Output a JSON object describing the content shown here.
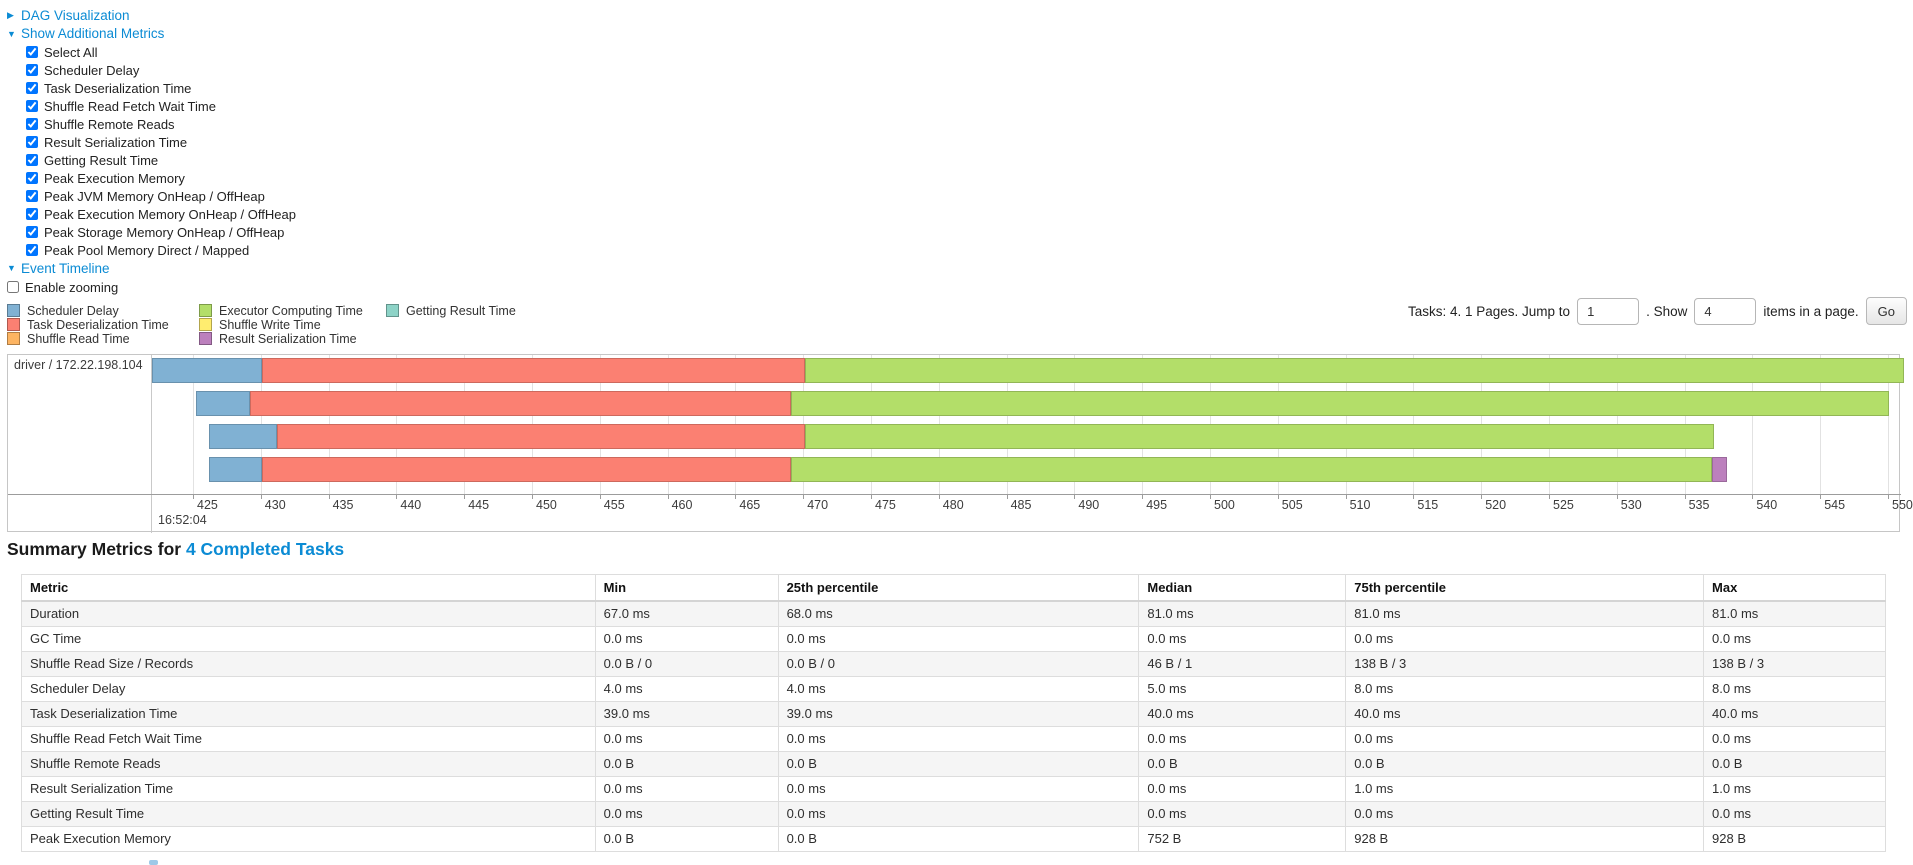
{
  "toggles": {
    "dag": "DAG Visualization",
    "additional_metrics": "Show Additional Metrics",
    "event_timeline": "Event Timeline"
  },
  "enable_zooming_label": "Enable zooming",
  "metrics_checkboxes": [
    "Select All",
    "Scheduler Delay",
    "Task Deserialization Time",
    "Shuffle Read Fetch Wait Time",
    "Shuffle Remote Reads",
    "Result Serialization Time",
    "Getting Result Time",
    "Peak Execution Memory",
    "Peak JVM Memory OnHeap / OffHeap",
    "Peak Execution Memory OnHeap / OffHeap",
    "Peak Storage Memory OnHeap / OffHeap",
    "Peak Pool Memory Direct / Mapped"
  ],
  "pagination": {
    "prefix": "Tasks: 4. 1 Pages. Jump to",
    "jump_value": "1",
    "mid": ". Show",
    "show_value": "4",
    "suffix": "items in a page.",
    "go_label": "Go"
  },
  "colors": {
    "link_blue": "#0b8bd4",
    "scheduler_delay": "#80B1D3",
    "task_deserialization": "#FB8072",
    "shuffle_read": "#FDB462",
    "executor_computing": "#B3DE69",
    "shuffle_write": "#FFED6F",
    "result_serialization": "#BC80BD",
    "getting_result": "#8DD3C7"
  },
  "timeline_legend": {
    "columns": [
      [
        {
          "label": "Scheduler Delay",
          "metric": "scheduler_delay"
        },
        {
          "label": "Task Deserialization Time",
          "metric": "task_deserialization"
        },
        {
          "label": "Shuffle Read Time",
          "metric": "shuffle_read"
        }
      ],
      [
        {
          "label": "Executor Computing Time",
          "metric": "executor_computing"
        },
        {
          "label": "Shuffle Write Time",
          "metric": "shuffle_write"
        },
        {
          "label": "Result Serialization Time",
          "metric": "result_serialization"
        }
      ],
      [
        {
          "label": "Getting Result Time",
          "metric": "getting_result"
        }
      ]
    ]
  },
  "chart_data": {
    "type": "timeline",
    "row_label": "driver / 172.22.198.104",
    "time_anchor_label": "16:52:04",
    "x_unit": "milliseconds within 16:52:04",
    "axis": {
      "min": 422.0,
      "max": 551.0,
      "tick_start": 425,
      "tick_step": 5,
      "tick_end": 550
    },
    "tasks": [
      {
        "segments": [
          {
            "metric": "scheduler_delay",
            "start": 422.0,
            "end": 430.1
          },
          {
            "metric": "task_deserialization",
            "start": 430.1,
            "end": 470.1
          },
          {
            "metric": "executor_computing",
            "start": 470.1,
            "end": 551.2
          }
        ]
      },
      {
        "segments": [
          {
            "metric": "scheduler_delay",
            "start": 425.2,
            "end": 429.2
          },
          {
            "metric": "task_deserialization",
            "start": 429.2,
            "end": 469.1
          },
          {
            "metric": "executor_computing",
            "start": 469.1,
            "end": 550.1
          }
        ]
      },
      {
        "segments": [
          {
            "metric": "scheduler_delay",
            "start": 426.2,
            "end": 431.2
          },
          {
            "metric": "task_deserialization",
            "start": 431.2,
            "end": 470.1
          },
          {
            "metric": "executor_computing",
            "start": 470.1,
            "end": 537.2
          }
        ]
      },
      {
        "segments": [
          {
            "metric": "scheduler_delay",
            "start": 426.2,
            "end": 430.1
          },
          {
            "metric": "task_deserialization",
            "start": 430.1,
            "end": 469.1
          },
          {
            "metric": "executor_computing",
            "start": 469.1,
            "end": 537.0
          },
          {
            "metric": "result_serialization",
            "start": 537.0,
            "end": 538.1
          }
        ]
      }
    ]
  },
  "summary": {
    "heading_prefix": "Summary Metrics for ",
    "heading_link": "4 Completed Tasks"
  },
  "summary_table": {
    "columns": [
      "Metric",
      "Min",
      "25th percentile",
      "Median",
      "75th percentile",
      "Max"
    ],
    "rows": [
      [
        "Duration",
        "67.0 ms",
        "68.0 ms",
        "81.0 ms",
        "81.0 ms",
        "81.0 ms"
      ],
      [
        "GC Time",
        "0.0 ms",
        "0.0 ms",
        "0.0 ms",
        "0.0 ms",
        "0.0 ms"
      ],
      [
        "Shuffle Read Size / Records",
        "0.0 B / 0",
        "0.0 B / 0",
        "46 B / 1",
        "138 B / 3",
        "138 B / 3"
      ],
      [
        "Scheduler Delay",
        "4.0 ms",
        "4.0 ms",
        "5.0 ms",
        "8.0 ms",
        "8.0 ms"
      ],
      [
        "Task Deserialization Time",
        "39.0 ms",
        "39.0 ms",
        "40.0 ms",
        "40.0 ms",
        "40.0 ms"
      ],
      [
        "Shuffle Read Fetch Wait Time",
        "0.0 ms",
        "0.0 ms",
        "0.0 ms",
        "0.0 ms",
        "0.0 ms"
      ],
      [
        "Shuffle Remote Reads",
        "0.0 B",
        "0.0 B",
        "0.0 B",
        "0.0 B",
        "0.0 B"
      ],
      [
        "Result Serialization Time",
        "0.0 ms",
        "0.0 ms",
        "0.0 ms",
        "1.0 ms",
        "1.0 ms"
      ],
      [
        "Getting Result Time",
        "0.0 ms",
        "0.0 ms",
        "0.0 ms",
        "0.0 ms",
        "0.0 ms"
      ],
      [
        "Peak Execution Memory",
        "0.0 B",
        "0.0 B",
        "752 B",
        "928 B",
        "928 B"
      ]
    ]
  }
}
